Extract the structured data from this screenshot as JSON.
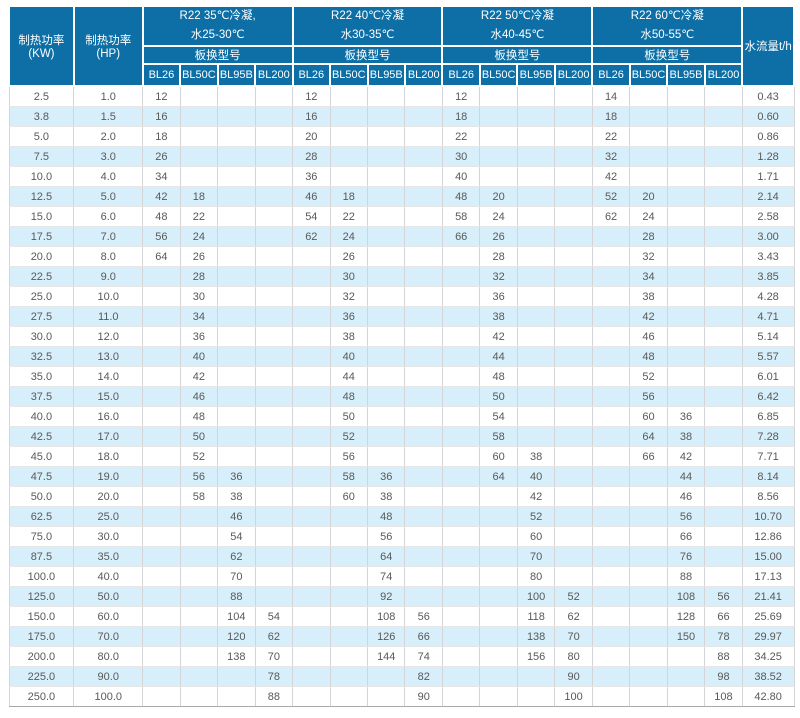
{
  "table": {
    "col_kw_header": "制热功率(KW)",
    "col_hp_header": "制热功率(HP)",
    "flow_header": "水流量t/h",
    "model_row_label": "板换型号",
    "model_codes": [
      "BL26",
      "BL50C",
      "BL95B",
      "BL200"
    ],
    "groups": [
      {
        "title_line1": "R22 35℃冷凝,",
        "title_line2": "水25-30℃"
      },
      {
        "title_line1": "R22 40℃冷凝",
        "title_line2": "水30-35℃"
      },
      {
        "title_line1": "R22 50℃冷凝",
        "title_line2": "水40-45℃"
      },
      {
        "title_line1": "R22 60℃冷凝",
        "title_line2": "水50-55℃"
      }
    ],
    "rows": [
      {
        "kw": "2.5",
        "hp": "1.0",
        "values": [
          "12",
          "",
          "",
          "",
          "12",
          "",
          "",
          "",
          "12",
          "",
          "",
          "",
          "14",
          "",
          "",
          ""
        ],
        "flow": "0.43"
      },
      {
        "kw": "3.8",
        "hp": "1.5",
        "values": [
          "16",
          "",
          "",
          "",
          "16",
          "",
          "",
          "",
          "18",
          "",
          "",
          "",
          "18",
          "",
          "",
          ""
        ],
        "flow": "0.60"
      },
      {
        "kw": "5.0",
        "hp": "2.0",
        "values": [
          "18",
          "",
          "",
          "",
          "20",
          "",
          "",
          "",
          "22",
          "",
          "",
          "",
          "22",
          "",
          "",
          ""
        ],
        "flow": "0.86"
      },
      {
        "kw": "7.5",
        "hp": "3.0",
        "values": [
          "26",
          "",
          "",
          "",
          "28",
          "",
          "",
          "",
          "30",
          "",
          "",
          "",
          "32",
          "",
          "",
          ""
        ],
        "flow": "1.28"
      },
      {
        "kw": "10.0",
        "hp": "4.0",
        "values": [
          "34",
          "",
          "",
          "",
          "36",
          "",
          "",
          "",
          "40",
          "",
          "",
          "",
          "42",
          "",
          "",
          ""
        ],
        "flow": "1.71"
      },
      {
        "kw": "12.5",
        "hp": "5.0",
        "values": [
          "42",
          "18",
          "",
          "",
          "46",
          "18",
          "",
          "",
          "48",
          "20",
          "",
          "",
          "52",
          "20",
          "",
          ""
        ],
        "flow": "2.14"
      },
      {
        "kw": "15.0",
        "hp": "6.0",
        "values": [
          "48",
          "22",
          "",
          "",
          "54",
          "22",
          "",
          "",
          "58",
          "24",
          "",
          "",
          "62",
          "24",
          "",
          ""
        ],
        "flow": "2.58"
      },
      {
        "kw": "17.5",
        "hp": "7.0",
        "values": [
          "56",
          "24",
          "",
          "",
          "62",
          "24",
          "",
          "",
          "66",
          "26",
          "",
          "",
          "",
          "28",
          "",
          ""
        ],
        "flow": "3.00"
      },
      {
        "kw": "20.0",
        "hp": "8.0",
        "values": [
          "64",
          "26",
          "",
          "",
          "",
          "26",
          "",
          "",
          "",
          "28",
          "",
          "",
          "",
          "32",
          "",
          ""
        ],
        "flow": "3.43"
      },
      {
        "kw": "22.5",
        "hp": "9.0",
        "values": [
          "",
          "28",
          "",
          "",
          "",
          "30",
          "",
          "",
          "",
          "32",
          "",
          "",
          "",
          "34",
          "",
          ""
        ],
        "flow": "3.85"
      },
      {
        "kw": "25.0",
        "hp": "10.0",
        "values": [
          "",
          "30",
          "",
          "",
          "",
          "32",
          "",
          "",
          "",
          "36",
          "",
          "",
          "",
          "38",
          "",
          ""
        ],
        "flow": "4.28"
      },
      {
        "kw": "27.5",
        "hp": "11.0",
        "values": [
          "",
          "34",
          "",
          "",
          "",
          "36",
          "",
          "",
          "",
          "38",
          "",
          "",
          "",
          "42",
          "",
          ""
        ],
        "flow": "4.71"
      },
      {
        "kw": "30.0",
        "hp": "12.0",
        "values": [
          "",
          "36",
          "",
          "",
          "",
          "38",
          "",
          "",
          "",
          "42",
          "",
          "",
          "",
          "46",
          "",
          ""
        ],
        "flow": "5.14"
      },
      {
        "kw": "32.5",
        "hp": "13.0",
        "values": [
          "",
          "40",
          "",
          "",
          "",
          "40",
          "",
          "",
          "",
          "44",
          "",
          "",
          "",
          "48",
          "",
          ""
        ],
        "flow": "5.57"
      },
      {
        "kw": "35.0",
        "hp": "14.0",
        "values": [
          "",
          "42",
          "",
          "",
          "",
          "44",
          "",
          "",
          "",
          "48",
          "",
          "",
          "",
          "52",
          "",
          ""
        ],
        "flow": "6.01"
      },
      {
        "kw": "37.5",
        "hp": "15.0",
        "values": [
          "",
          "46",
          "",
          "",
          "",
          "48",
          "",
          "",
          "",
          "50",
          "",
          "",
          "",
          "56",
          "",
          ""
        ],
        "flow": "6.42"
      },
      {
        "kw": "40.0",
        "hp": "16.0",
        "values": [
          "",
          "48",
          "",
          "",
          "",
          "50",
          "",
          "",
          "",
          "54",
          "",
          "",
          "",
          "60",
          "36",
          ""
        ],
        "flow": "6.85"
      },
      {
        "kw": "42.5",
        "hp": "17.0",
        "values": [
          "",
          "50",
          "",
          "",
          "",
          "52",
          "",
          "",
          "",
          "58",
          "",
          "",
          "",
          "64",
          "38",
          ""
        ],
        "flow": "7.28"
      },
      {
        "kw": "45.0",
        "hp": "18.0",
        "values": [
          "",
          "52",
          "",
          "",
          "",
          "56",
          "",
          "",
          "",
          "60",
          "38",
          "",
          "",
          "66",
          "42",
          ""
        ],
        "flow": "7.71"
      },
      {
        "kw": "47.5",
        "hp": "19.0",
        "values": [
          "",
          "56",
          "36",
          "",
          "",
          "58",
          "36",
          "",
          "",
          "64",
          "40",
          "",
          "",
          "",
          "44",
          ""
        ],
        "flow": "8.14"
      },
      {
        "kw": "50.0",
        "hp": "20.0",
        "values": [
          "",
          "58",
          "38",
          "",
          "",
          "60",
          "38",
          "",
          "",
          "",
          "42",
          "",
          "",
          "",
          "46",
          ""
        ],
        "flow": "8.56"
      },
      {
        "kw": "62.5",
        "hp": "25.0",
        "values": [
          "",
          "",
          "46",
          "",
          "",
          "",
          "48",
          "",
          "",
          "",
          "52",
          "",
          "",
          "",
          "56",
          ""
        ],
        "flow": "10.70"
      },
      {
        "kw": "75.0",
        "hp": "30.0",
        "values": [
          "",
          "",
          "54",
          "",
          "",
          "",
          "56",
          "",
          "",
          "",
          "60",
          "",
          "",
          "",
          "66",
          ""
        ],
        "flow": "12.86"
      },
      {
        "kw": "87.5",
        "hp": "35.0",
        "values": [
          "",
          "",
          "62",
          "",
          "",
          "",
          "64",
          "",
          "",
          "",
          "70",
          "",
          "",
          "",
          "76",
          ""
        ],
        "flow": "15.00"
      },
      {
        "kw": "100.0",
        "hp": "40.0",
        "values": [
          "",
          "",
          "70",
          "",
          "",
          "",
          "74",
          "",
          "",
          "",
          "80",
          "",
          "",
          "",
          "88",
          ""
        ],
        "flow": "17.13"
      },
      {
        "kw": "125.0",
        "hp": "50.0",
        "values": [
          "",
          "",
          "88",
          "",
          "",
          "",
          "92",
          "",
          "",
          "",
          "100",
          "52",
          "",
          "",
          "108",
          "56"
        ],
        "flow": "21.41"
      },
      {
        "kw": "150.0",
        "hp": "60.0",
        "values": [
          "",
          "",
          "104",
          "54",
          "",
          "",
          "108",
          "56",
          "",
          "",
          "118",
          "62",
          "",
          "",
          "128",
          "66"
        ],
        "flow": "25.69"
      },
      {
        "kw": "175.0",
        "hp": "70.0",
        "values": [
          "",
          "",
          "120",
          "62",
          "",
          "",
          "126",
          "66",
          "",
          "",
          "138",
          "70",
          "",
          "",
          "150",
          "78"
        ],
        "flow": "29.97"
      },
      {
        "kw": "200.0",
        "hp": "80.0",
        "values": [
          "",
          "",
          "138",
          "70",
          "",
          "",
          "144",
          "74",
          "",
          "",
          "156",
          "80",
          "",
          "",
          "",
          "88"
        ],
        "flow": "34.25"
      },
      {
        "kw": "225.0",
        "hp": "90.0",
        "values": [
          "",
          "",
          "",
          "78",
          "",
          "",
          "",
          "82",
          "",
          "",
          "",
          "90",
          "",
          "",
          "",
          "98"
        ],
        "flow": "38.52"
      },
      {
        "kw": "250.0",
        "hp": "100.0",
        "values": [
          "",
          "",
          "",
          "88",
          "",
          "",
          "",
          "90",
          "",
          "",
          "",
          "100",
          "",
          "",
          "",
          "108"
        ],
        "flow": "42.80"
      }
    ]
  },
  "colors": {
    "header_bg": "#0d6fa6",
    "header_text": "#ffffff",
    "alt_row_bg": "#d6effa",
    "row_bg": "#ffffff",
    "data_text": "#595959"
  }
}
